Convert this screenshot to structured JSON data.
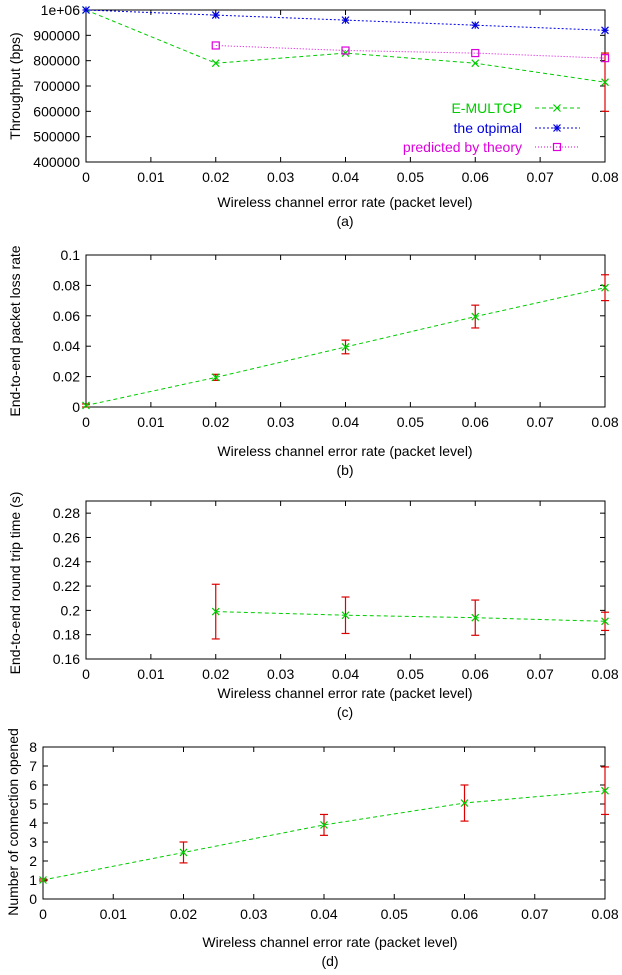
{
  "chart_data": [
    {
      "type": "line",
      "panel_label": "(a)",
      "title": "",
      "xlabel": "Wireless channel error rate (packet level)",
      "ylabel": "Throughput (bps)",
      "xlim": [
        0,
        0.08
      ],
      "ylim": [
        400000,
        1000000
      ],
      "xticks": [
        "0",
        "0.01",
        "0.02",
        "0.03",
        "0.04",
        "0.05",
        "0.06",
        "0.07",
        "0.08"
      ],
      "yticks": [
        "400000",
        "500000",
        "600000",
        "700000",
        "800000",
        "900000",
        "1e+06"
      ],
      "ytick_values": [
        400000,
        500000,
        600000,
        700000,
        800000,
        900000,
        1000000
      ],
      "grid": false,
      "legend_position": "bottom-right",
      "series": [
        {
          "name": "E-MULTCP",
          "color": "#00cc00",
          "marker": "x",
          "x": [
            0,
            0.02,
            0.04,
            0.06,
            0.08
          ],
          "y": [
            1000000,
            790000,
            830000,
            790000,
            715000
          ],
          "err": [
            0,
            0,
            0,
            0,
            115000
          ]
        },
        {
          "name": "the otpimal",
          "color": "#0000dd",
          "marker": "star",
          "x": [
            0,
            0.02,
            0.04,
            0.06,
            0.08
          ],
          "y": [
            1000000,
            980000,
            960000,
            940000,
            920000
          ]
        },
        {
          "name": "predicted by theory",
          "color": "#dd00dd",
          "marker": "square",
          "x": [
            0.02,
            0.04,
            0.06,
            0.08
          ],
          "y": [
            860000,
            840000,
            830000,
            810000
          ]
        }
      ]
    },
    {
      "type": "line",
      "panel_label": "(b)",
      "title": "",
      "xlabel": "Wireless channel error rate (packet level)",
      "ylabel": "End-to-end packet loss rate",
      "xlim": [
        0,
        0.08
      ],
      "ylim": [
        0,
        0.1
      ],
      "xticks": [
        "0",
        "0.01",
        "0.02",
        "0.03",
        "0.04",
        "0.05",
        "0.06",
        "0.07",
        "0.08"
      ],
      "yticks": [
        "0",
        "0.02",
        "0.04",
        "0.06",
        "0.08",
        "0.1"
      ],
      "ytick_values": [
        0,
        0.02,
        0.04,
        0.06,
        0.08,
        0.1
      ],
      "grid": false,
      "series": [
        {
          "name": "E-MULTCP",
          "color": "#00cc00",
          "marker": "x",
          "x": [
            0,
            0.02,
            0.04,
            0.06,
            0.08
          ],
          "y": [
            0.001,
            0.0195,
            0.0395,
            0.0595,
            0.0785
          ],
          "err": [
            0.001,
            0.002,
            0.0045,
            0.0075,
            0.0085
          ]
        }
      ]
    },
    {
      "type": "line",
      "panel_label": "(c)",
      "title": "",
      "xlabel": "Wireless channel error rate (packet level)",
      "ylabel": "End-to-end round trip time (s)",
      "xlim": [
        0,
        0.08
      ],
      "ylim": [
        0.16,
        0.29
      ],
      "xticks": [
        "0",
        "0.01",
        "0.02",
        "0.03",
        "0.04",
        "0.05",
        "0.06",
        "0.07",
        "0.08"
      ],
      "yticks": [
        "0.16",
        "0.18",
        "0.2",
        "0.22",
        "0.24",
        "0.26",
        "0.28"
      ],
      "ytick_values": [
        0.16,
        0.18,
        0.2,
        0.22,
        0.24,
        0.26,
        0.28
      ],
      "grid": false,
      "series": [
        {
          "name": "E-MULTCP",
          "color": "#00cc00",
          "marker": "x",
          "x": [
            0.02,
            0.04,
            0.06,
            0.08
          ],
          "y": [
            0.199,
            0.196,
            0.194,
            0.191
          ],
          "err": [
            0.0225,
            0.015,
            0.0145,
            0.0075
          ]
        }
      ]
    },
    {
      "type": "line",
      "panel_label": "(d)",
      "title": "",
      "xlabel": "Wireless channel error rate (packet level)",
      "ylabel": "Number of connection opened",
      "xlim": [
        0,
        0.08
      ],
      "ylim": [
        0,
        8
      ],
      "xticks": [
        "0",
        "0.01",
        "0.02",
        "0.03",
        "0.04",
        "0.05",
        "0.06",
        "0.07",
        "0.08"
      ],
      "yticks": [
        "0",
        "1",
        "2",
        "3",
        "4",
        "5",
        "6",
        "7",
        "8"
      ],
      "ytick_values": [
        0,
        1,
        2,
        3,
        4,
        5,
        6,
        7,
        8
      ],
      "grid": false,
      "series": [
        {
          "name": "E-MULTCP",
          "color": "#00cc00",
          "marker": "x",
          "x": [
            0,
            0.02,
            0.04,
            0.06,
            0.08
          ],
          "y": [
            1.0,
            2.45,
            3.9,
            5.05,
            5.7
          ],
          "err": [
            0.05,
            0.55,
            0.55,
            0.95,
            1.25
          ]
        }
      ]
    }
  ]
}
